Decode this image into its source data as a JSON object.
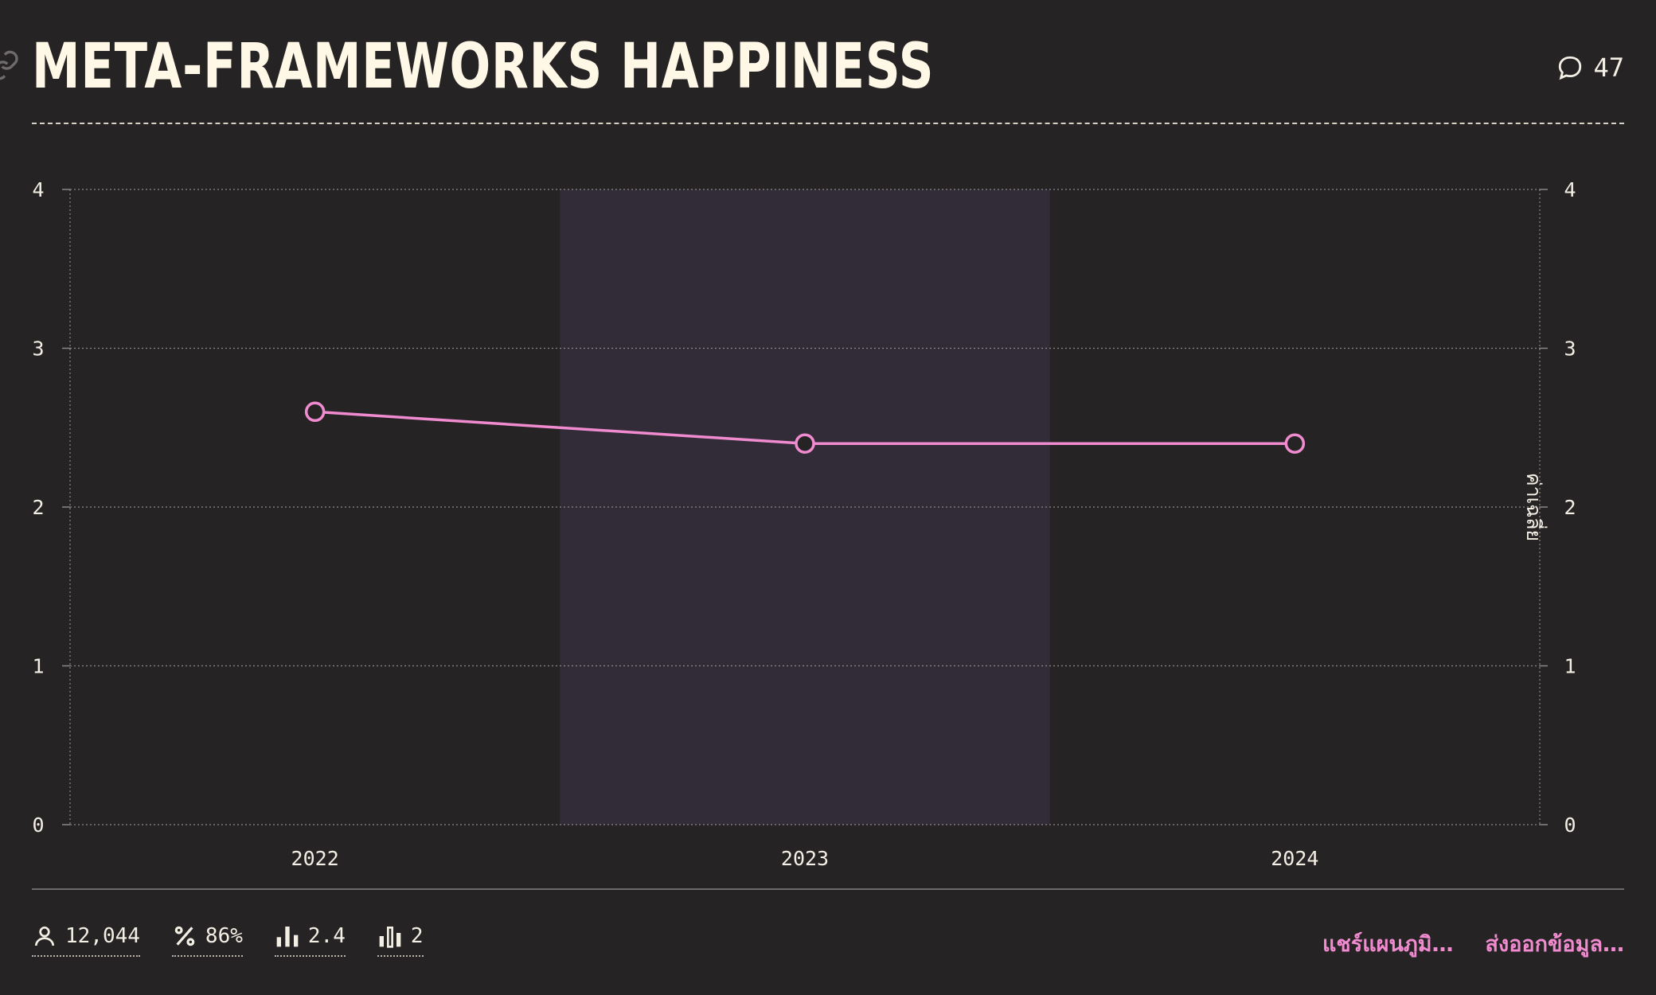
{
  "header": {
    "title": "META-FRAMEWORKS HAPPINESS",
    "comment_count": "47"
  },
  "chart_data": {
    "type": "line",
    "title": "META-FRAMEWORKS HAPPINESS",
    "categories": [
      "2022",
      "2023",
      "2024"
    ],
    "series": [
      {
        "values": [
          2.6,
          2.4,
          2.4
        ],
        "color": "#f08bd0"
      }
    ],
    "ylim": [
      0,
      4
    ],
    "yticks": [
      0,
      1,
      2,
      3,
      4
    ],
    "right_axis_label": "ค่าเฉลี่ย",
    "highlighted_category": "2023",
    "grid": true
  },
  "footer": {
    "stats": [
      {
        "icon": "user-icon",
        "value": "12,044"
      },
      {
        "icon": "percent-icon",
        "value": "86%"
      },
      {
        "icon": "average-bars-icon",
        "value": "2.4"
      },
      {
        "icon": "median-bars-icon",
        "value": "2"
      }
    ],
    "actions": {
      "share": "แชร์แผนภูมิ…",
      "export": "ส่งออกข้อมูล…"
    }
  },
  "colors": {
    "background": "#262325",
    "accent": "#f08bd0",
    "highlight_band": "#312c37",
    "text": "#f4efe4"
  }
}
